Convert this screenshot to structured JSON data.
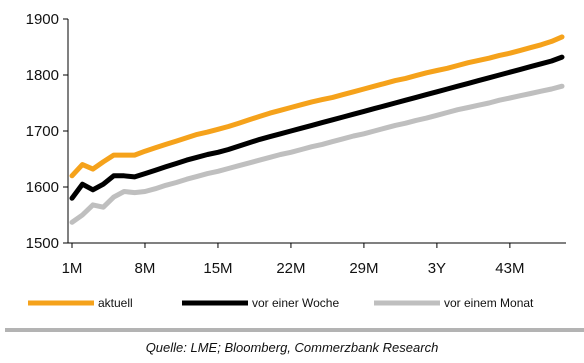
{
  "chart_data": {
    "type": "line",
    "title": "",
    "xlabel": "",
    "ylabel": "",
    "x_count": 48,
    "x_ticks": [
      {
        "index": 0,
        "label": "1M"
      },
      {
        "index": 7,
        "label": "8M"
      },
      {
        "index": 14,
        "label": "15M"
      },
      {
        "index": 21,
        "label": "22M"
      },
      {
        "index": 28,
        "label": "29M"
      },
      {
        "index": 35,
        "label": "3Y"
      },
      {
        "index": 42,
        "label": "43M"
      }
    ],
    "ylim": [
      1500,
      1900
    ],
    "y_ticks": [
      1500,
      1600,
      1700,
      1800,
      1900
    ],
    "grid": false,
    "legend_position": "bottom",
    "series": [
      {
        "name": "aktuell",
        "color": "#f5a21b",
        "values": [
          1620,
          1640,
          1632,
          1645,
          1657,
          1657,
          1657,
          1664,
          1670,
          1676,
          1682,
          1688,
          1694,
          1698,
          1703,
          1708,
          1714,
          1720,
          1726,
          1732,
          1737,
          1742,
          1747,
          1752,
          1756,
          1760,
          1765,
          1770,
          1775,
          1780,
          1785,
          1790,
          1794,
          1799,
          1804,
          1808,
          1812,
          1817,
          1822,
          1826,
          1830,
          1835,
          1839,
          1844,
          1849,
          1854,
          1860,
          1868
        ]
      },
      {
        "name": "vor einer Woche",
        "color": "#000000",
        "values": [
          1580,
          1605,
          1595,
          1605,
          1620,
          1620,
          1618,
          1624,
          1630,
          1636,
          1642,
          1648,
          1653,
          1658,
          1662,
          1667,
          1673,
          1679,
          1685,
          1690,
          1695,
          1700,
          1705,
          1710,
          1715,
          1720,
          1725,
          1730,
          1735,
          1740,
          1745,
          1750,
          1755,
          1760,
          1765,
          1770,
          1775,
          1780,
          1785,
          1790,
          1795,
          1800,
          1805,
          1810,
          1815,
          1820,
          1825,
          1832
        ]
      },
      {
        "name": "vor einem Monat",
        "color": "#bfbfbf",
        "values": [
          1537,
          1550,
          1568,
          1564,
          1582,
          1592,
          1590,
          1592,
          1597,
          1603,
          1608,
          1614,
          1619,
          1624,
          1628,
          1633,
          1638,
          1643,
          1648,
          1653,
          1658,
          1662,
          1667,
          1672,
          1676,
          1681,
          1686,
          1691,
          1695,
          1700,
          1705,
          1710,
          1714,
          1719,
          1723,
          1728,
          1733,
          1738,
          1742,
          1746,
          1750,
          1755,
          1759,
          1763,
          1767,
          1771,
          1775,
          1780
        ]
      }
    ]
  },
  "source": "Quelle: LME; Bloomberg, Commerzbank Research"
}
